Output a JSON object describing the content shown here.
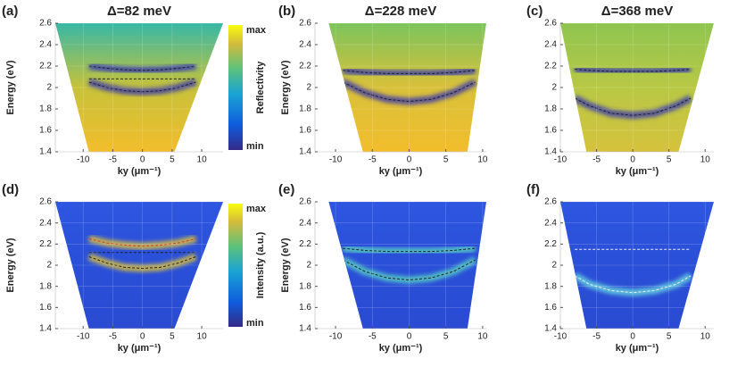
{
  "chart_data": [
    {
      "type": "heatmap",
      "panel_label": "(a)",
      "title": "Δ=82 meV",
      "ylabel": "Energy (eV)",
      "xlabel": "ky (μm⁻¹)",
      "xlim": [
        -14.7,
        13.6
      ],
      "ylim": [
        1.4,
        2.6
      ],
      "xticks": [
        -10,
        -5,
        0,
        5,
        10
      ],
      "yticks": [
        1.4,
        1.6,
        1.8,
        2,
        2.2,
        2.4,
        2.6
      ],
      "grid": true,
      "background": [
        "#37b8a6",
        "#c7c23a",
        "#f2bd2c"
      ],
      "glow_color": "#2b2fb8",
      "colorbar": {
        "label": "Reflectivity",
        "max_label": "max",
        "min_label": "min"
      },
      "x": [
        -9,
        -6,
        -3,
        0,
        3,
        6,
        9
      ],
      "series": [
        {
          "color": "#222222",
          "values": [
            2.2,
            2.18,
            2.165,
            2.16,
            2.165,
            2.18,
            2.2
          ]
        },
        {
          "color": "#222222",
          "values": [
            2.08,
            2.08,
            2.08,
            2.08,
            2.08,
            2.08,
            2.08
          ]
        },
        {
          "color": "#222222",
          "values": [
            2.05,
            2.0,
            1.97,
            1.96,
            1.97,
            2.0,
            2.05
          ]
        }
      ]
    },
    {
      "type": "heatmap",
      "panel_label": "(b)",
      "title": "Δ=228 meV",
      "ylabel": "Energy (eV)",
      "xlabel": "ky (μm⁻¹)",
      "xlim": [
        -12.8,
        10.5
      ],
      "ylim": [
        1.4,
        2.6
      ],
      "xticks": [
        -10,
        -5,
        0,
        5,
        10
      ],
      "yticks": [
        1.4,
        1.6,
        1.8,
        2,
        2.2,
        2.4,
        2.6
      ],
      "grid": true,
      "background": [
        "#7cc45c",
        "#d9c13a",
        "#f2bd2c"
      ],
      "glow_color": "#2b2fb8",
      "x": [
        -9,
        -6,
        -3,
        0,
        3,
        6,
        9
      ],
      "series": [
        {
          "color": "#222222",
          "values": [
            2.16,
            2.14,
            2.13,
            2.13,
            2.13,
            2.14,
            2.16
          ]
        },
        {
          "color": "#222222",
          "values": [
            2.05,
            1.95,
            1.89,
            1.87,
            1.89,
            1.95,
            2.05
          ]
        }
      ]
    },
    {
      "type": "heatmap",
      "panel_label": "(c)",
      "title": "Δ=368 meV",
      "xlabel": "ky (μm⁻¹)",
      "xlim": [
        -10,
        11.2
      ],
      "ylim": [
        1.4,
        2.6
      ],
      "xticks": [
        -10,
        -5,
        0,
        5,
        10
      ],
      "yticks": [
        1.4,
        1.6,
        1.8,
        2,
        2.2,
        2.4,
        2.6
      ],
      "grid": true,
      "background": [
        "#8fc550",
        "#b8c845",
        "#d6c23c"
      ],
      "glow_color": "#2b2fb8",
      "x": [
        -8,
        -6,
        -3,
        0,
        3,
        6,
        8
      ],
      "series": [
        {
          "color": "#222222",
          "values": [
            2.17,
            2.16,
            2.15,
            2.15,
            2.15,
            2.16,
            2.17
          ]
        },
        {
          "color": "#222222",
          "values": [
            1.9,
            1.83,
            1.76,
            1.74,
            1.76,
            1.83,
            1.9
          ]
        }
      ]
    },
    {
      "type": "heatmap",
      "panel_label": "(d)",
      "ylabel": "Energy (eV)",
      "xlabel": "ky (μm⁻¹)",
      "xlim": [
        -14.7,
        13.6
      ],
      "ylim": [
        1.4,
        2.6
      ],
      "xticks": [
        -10,
        -5,
        0,
        5,
        10
      ],
      "yticks": [
        1.4,
        1.6,
        1.8,
        2,
        2.2,
        2.4,
        2.6
      ],
      "grid": true,
      "background": [
        "#2e56e0",
        "#2a4fd8",
        "#2a4bd2"
      ],
      "glow_color": "#f5d020",
      "colorbar": {
        "label": "Intensity (a.u.)",
        "max_label": "max",
        "min_label": "min"
      },
      "x": [
        -9,
        -6,
        -3,
        0,
        3,
        6,
        9
      ],
      "series": [
        {
          "color": "#d83a2a",
          "values": [
            2.25,
            2.21,
            2.19,
            2.18,
            2.19,
            2.21,
            2.25
          ]
        },
        {
          "color": "#222222",
          "values": [
            2.12,
            2.12,
            2.12,
            2.12,
            2.12,
            2.12,
            2.12
          ]
        },
        {
          "color": "#222222",
          "values": [
            2.08,
            2.02,
            1.98,
            1.97,
            1.98,
            2.02,
            2.08
          ]
        }
      ]
    },
    {
      "type": "heatmap",
      "panel_label": "(e)",
      "ylabel": "Energy (eV)",
      "xlabel": "ky (μm⁻¹)",
      "xlim": [
        -12.8,
        10.5
      ],
      "ylim": [
        1.4,
        2.6
      ],
      "xticks": [
        -10,
        -5,
        0,
        5,
        10
      ],
      "yticks": [
        1.4,
        1.6,
        1.8,
        2,
        2.2,
        2.4,
        2.6
      ],
      "grid": true,
      "background": [
        "#2e56e0",
        "#2a4fd8",
        "#2a4bd2"
      ],
      "glow_color": "#5ee0c0",
      "x": [
        -9,
        -6,
        -3,
        0,
        3,
        6,
        9
      ],
      "series": [
        {
          "color": "#222222",
          "values": [
            2.16,
            2.14,
            2.13,
            2.13,
            2.13,
            2.14,
            2.16
          ]
        },
        {
          "color": "#222222",
          "values": [
            2.05,
            1.94,
            1.88,
            1.86,
            1.88,
            1.94,
            2.05
          ]
        }
      ]
    },
    {
      "type": "heatmap",
      "panel_label": "(f)",
      "xlabel": "ky (μm⁻¹)",
      "xlim": [
        -10,
        11.2
      ],
      "ylim": [
        1.4,
        2.6
      ],
      "xticks": [
        -10,
        -5,
        0,
        5,
        10
      ],
      "yticks": [
        1.4,
        1.6,
        1.8,
        2,
        2.2,
        2.4,
        2.6
      ],
      "grid": true,
      "background": [
        "#2e56e0",
        "#2a4fd8",
        "#2a4bd2"
      ],
      "glow_color": "#6fe6e0",
      "x": [
        -8,
        -6,
        -3,
        0,
        3,
        6,
        8
      ],
      "series": [
        {
          "color": "#eeeeee",
          "values": [
            2.15,
            2.15,
            2.15,
            2.15,
            2.15,
            2.15,
            2.15
          ]
        },
        {
          "color": "#eeeeee",
          "values": [
            1.9,
            1.82,
            1.76,
            1.74,
            1.76,
            1.82,
            1.9
          ]
        }
      ]
    }
  ]
}
